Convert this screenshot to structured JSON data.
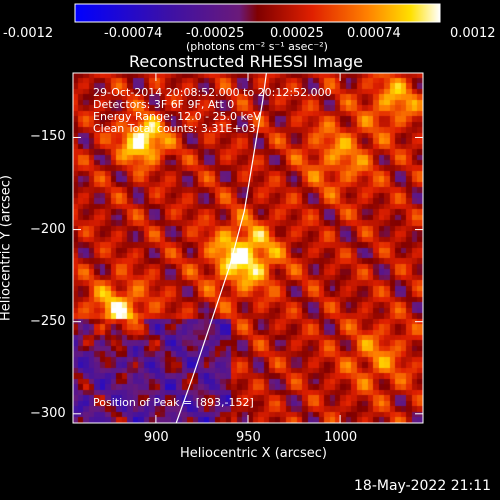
{
  "chart_data": {
    "type": "heatmap",
    "title": "Reconstructed RHESSI Image",
    "xlabel": "Heliocentric X (arcsec)",
    "ylabel": "Heliocentric Y (arcsec)",
    "xlim": [
      855,
      1045
    ],
    "ylim": [
      -305,
      -115
    ],
    "x_ticks": [
      900,
      950,
      1000
    ],
    "y_ticks": [
      -150,
      -200,
      -250,
      -300
    ],
    "colorbar": {
      "ticks": [
        "-0.0012",
        "-0.00074",
        "-0.00025",
        "0.00025",
        "0.00074",
        "0.0012"
      ],
      "unit_label": "(photons cm⁻² s⁻¹ asec⁻²)",
      "range": [
        -0.0012,
        0.0012
      ]
    },
    "annotation_lines": [
      "29-Oct-2014 20:08:52.000 to 20:12:52.000",
      "Detectors: 3F 6F 9F, Att 0",
      "Energy Range: 12.0 - 25.0 keV",
      "Clean     Total counts: 3.31E+03"
    ],
    "peak_text": "Position of Peak = [893,-152]",
    "peak": [
      893,
      -152
    ],
    "limb_curve": [
      [
        911,
        -305
      ],
      [
        920,
        -280
      ],
      [
        930,
        -250
      ],
      [
        940,
        -220
      ],
      [
        948,
        -190
      ],
      [
        953,
        -160
      ],
      [
        958,
        -130
      ],
      [
        960,
        -115
      ]
    ]
  },
  "timestamp": "18-May-2022 21:11"
}
